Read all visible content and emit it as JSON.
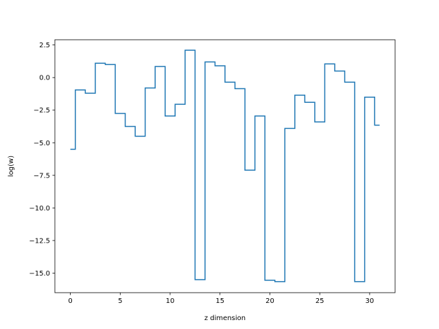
{
  "chart_data": {
    "type": "line",
    "drawstyle": "steps-mid",
    "title": "",
    "xlabel": "z dimension",
    "ylabel": "log(w)",
    "xlim": [
      -1.55,
      32.55
    ],
    "ylim": [
      -16.5,
      2.9
    ],
    "xticks": [
      0,
      5,
      10,
      15,
      20,
      25,
      30
    ],
    "yticks": [
      -15.0,
      -12.5,
      -10.0,
      -7.5,
      -5.0,
      -2.5,
      0.0,
      2.5
    ],
    "xtick_labels": [
      "0",
      "5",
      "10",
      "15",
      "20",
      "25",
      "30"
    ],
    "ytick_labels": [
      "−15.0",
      "−12.5",
      "−10.0",
      "−7.5",
      "−5.0",
      "−2.5",
      "0.0",
      "2.5"
    ],
    "grid": false,
    "series": [
      {
        "color": "#1f77b4",
        "x": [
          0,
          1,
          2,
          3,
          4,
          5,
          6,
          7,
          8,
          9,
          10,
          11,
          12,
          13,
          14,
          15,
          16,
          17,
          18,
          19,
          20,
          21,
          22,
          23,
          24,
          25,
          26,
          27,
          28,
          29,
          30,
          31
        ],
        "values": [
          -5.5,
          -0.95,
          -1.2,
          1.1,
          1.0,
          -2.75,
          -3.75,
          -4.5,
          -0.8,
          0.85,
          -2.95,
          -2.05,
          2.1,
          -15.5,
          1.2,
          0.9,
          -0.35,
          -0.85,
          -7.1,
          -2.95,
          -15.55,
          -15.65,
          -3.9,
          -1.35,
          -1.9,
          -3.4,
          1.05,
          0.5,
          -0.35,
          -15.65,
          -1.5,
          -3.65
        ]
      }
    ]
  }
}
